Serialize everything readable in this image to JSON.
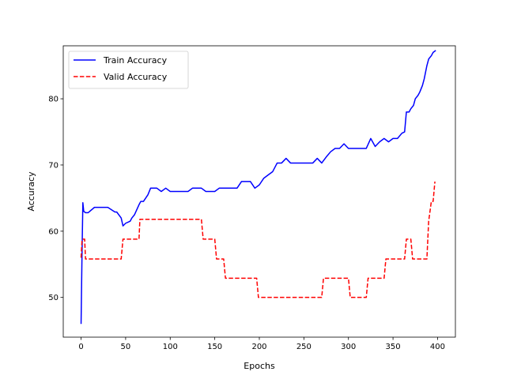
{
  "chart_data": {
    "type": "line",
    "xlabel": "Epochs",
    "ylabel": "Accuracy",
    "xlim": [
      -20,
      420
    ],
    "ylim": [
      44,
      88
    ],
    "xticks": [
      0,
      50,
      100,
      150,
      200,
      250,
      300,
      350,
      400
    ],
    "yticks": [
      50,
      60,
      70,
      80
    ],
    "grid": false,
    "legend_position": "top-left",
    "series": [
      {
        "name": "Train Accuracy",
        "color": "#0000ff",
        "style": "solid",
        "x": [
          0,
          1,
          2,
          3,
          5,
          8,
          15,
          20,
          25,
          30,
          38,
          40,
          45,
          47,
          50,
          55,
          57,
          60,
          65,
          67,
          70,
          75,
          78,
          80,
          85,
          90,
          95,
          100,
          105,
          110,
          115,
          120,
          125,
          130,
          135,
          140,
          150,
          155,
          160,
          165,
          170,
          175,
          180,
          185,
          190,
          195,
          200,
          205,
          210,
          215,
          220,
          225,
          230,
          235,
          240,
          245,
          250,
          255,
          260,
          265,
          270,
          275,
          280,
          285,
          290,
          295,
          300,
          305,
          310,
          315,
          320,
          325,
          330,
          335,
          340,
          345,
          350,
          355,
          360,
          363,
          365,
          368,
          370,
          373,
          375,
          378,
          380,
          383,
          385,
          388,
          390,
          393,
          395,
          398
        ],
        "y": [
          46,
          56,
          64.3,
          63,
          62.8,
          62.8,
          63.6,
          63.6,
          63.6,
          63.6,
          62.9,
          62.9,
          62,
          60.8,
          61.2,
          61.5,
          62,
          62.5,
          64,
          64.5,
          64.5,
          65.5,
          66.5,
          66.5,
          66.5,
          66,
          66.5,
          66,
          66,
          66,
          66,
          66,
          66.5,
          66.5,
          66.5,
          66,
          66,
          66.5,
          66.5,
          66.5,
          66.5,
          66.5,
          67.5,
          67.5,
          67.5,
          66.5,
          67,
          68,
          68.5,
          69,
          70.3,
          70.3,
          71,
          70.3,
          70.3,
          70.3,
          70.3,
          70.3,
          70.3,
          71,
          70.3,
          71.2,
          72,
          72.5,
          72.5,
          73.2,
          72.5,
          72.5,
          72.5,
          72.5,
          72.5,
          74,
          72.8,
          73.5,
          74,
          73.5,
          74,
          74,
          74.8,
          75,
          78,
          78,
          78.5,
          79,
          80,
          80.5,
          81,
          82,
          83,
          85,
          86,
          86.5,
          87,
          87.3
        ]
      },
      {
        "name": "Valid Accuracy",
        "color": "#ff0000",
        "style": "dashed",
        "x": [
          0,
          1,
          2,
          4,
          5,
          10,
          20,
          30,
          45,
          47,
          50,
          60,
          65,
          66,
          70,
          80,
          100,
          120,
          135,
          137,
          150,
          152,
          160,
          162,
          170,
          180,
          190,
          197,
          199,
          210,
          230,
          250,
          270,
          272,
          280,
          300,
          302,
          310,
          320,
          322,
          330,
          340,
          342,
          350,
          360,
          363,
          365,
          370,
          372,
          380,
          388,
          390,
          393,
          395,
          397
        ],
        "y": [
          56,
          58.5,
          58.8,
          58.8,
          55.8,
          55.8,
          55.8,
          55.8,
          55.8,
          58.8,
          58.8,
          58.8,
          58.8,
          61.8,
          61.8,
          61.8,
          61.8,
          61.8,
          61.8,
          58.8,
          58.8,
          55.8,
          55.8,
          52.9,
          52.9,
          52.9,
          52.9,
          52.9,
          50,
          50,
          50,
          50,
          50,
          52.9,
          52.9,
          52.9,
          50,
          50,
          50,
          52.9,
          52.9,
          52.9,
          55.8,
          55.8,
          55.8,
          55.8,
          58.8,
          58.8,
          55.8,
          55.8,
          55.8,
          61.5,
          64.5,
          64.5,
          67.5
        ]
      }
    ]
  }
}
